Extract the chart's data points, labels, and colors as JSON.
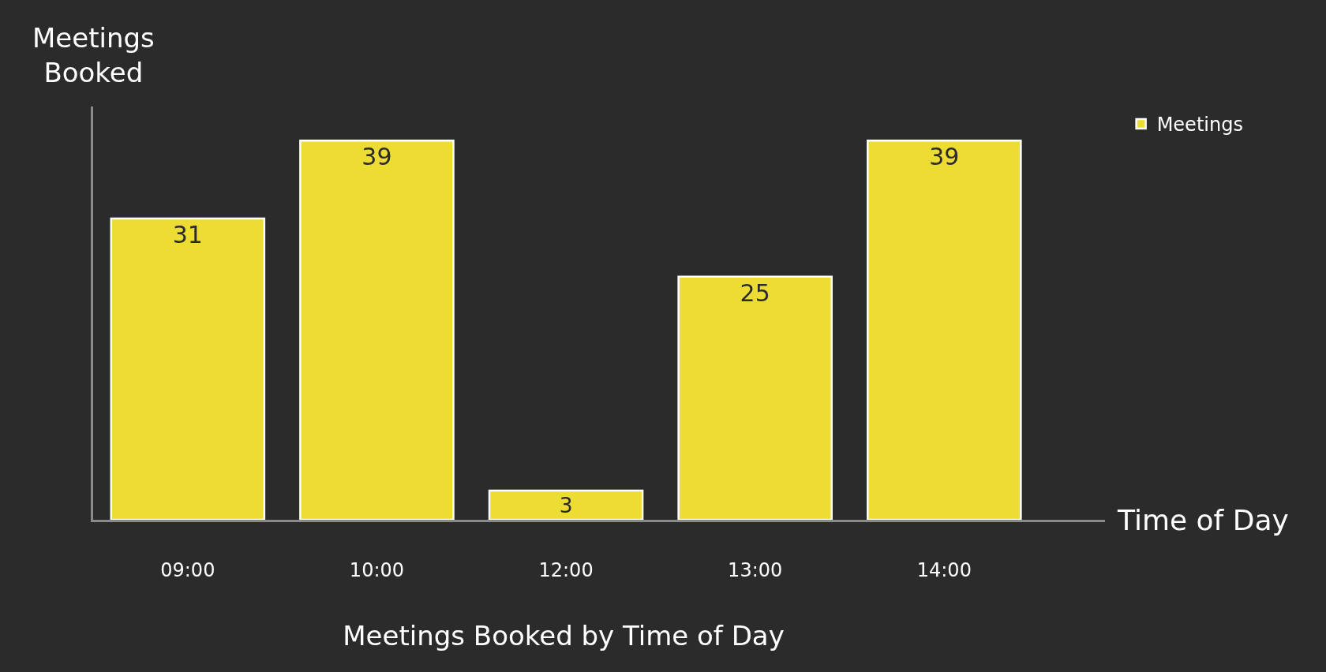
{
  "chart_data": {
    "type": "bar",
    "title": "Meetings Booked by Time of Day",
    "xlabel": "Time of Day",
    "ylabel": "Meetings\nBooked",
    "categories": [
      "09:00",
      "10:00",
      "12:00",
      "13:00",
      "14:00"
    ],
    "series": [
      {
        "name": "Meetings",
        "color": "#ecdc34",
        "values": [
          31,
          39,
          3,
          25,
          39
        ]
      }
    ],
    "data_labels": true,
    "legend": "top right",
    "grid": false
  }
}
